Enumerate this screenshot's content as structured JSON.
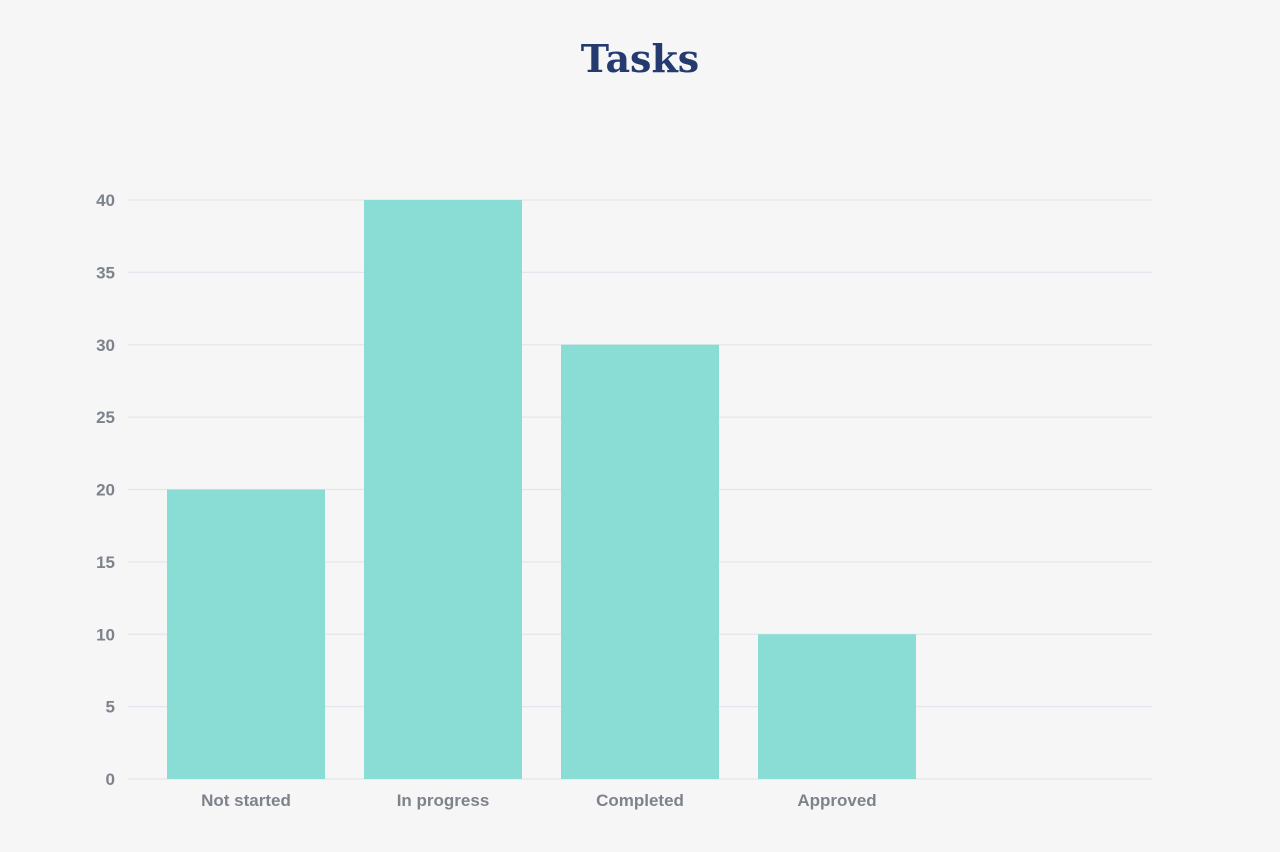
{
  "chart_data": {
    "type": "bar",
    "title": "Tasks",
    "categories": [
      "Not started",
      "In progress",
      "Completed",
      "Approved"
    ],
    "values": [
      20,
      40,
      30,
      10
    ],
    "ylim": [
      0,
      40
    ],
    "yticks": [
      "0",
      "5",
      "10",
      "15",
      "20",
      "25",
      "30",
      "35",
      "40"
    ],
    "xlabel": "",
    "ylabel": "",
    "grid": true,
    "legend": "none",
    "colors": {
      "bar": "#89ddd5",
      "grid": "#e3e6ec",
      "title": "#253a6e",
      "tick_text": "#7d838d",
      "background": "#f6f6f6"
    }
  }
}
